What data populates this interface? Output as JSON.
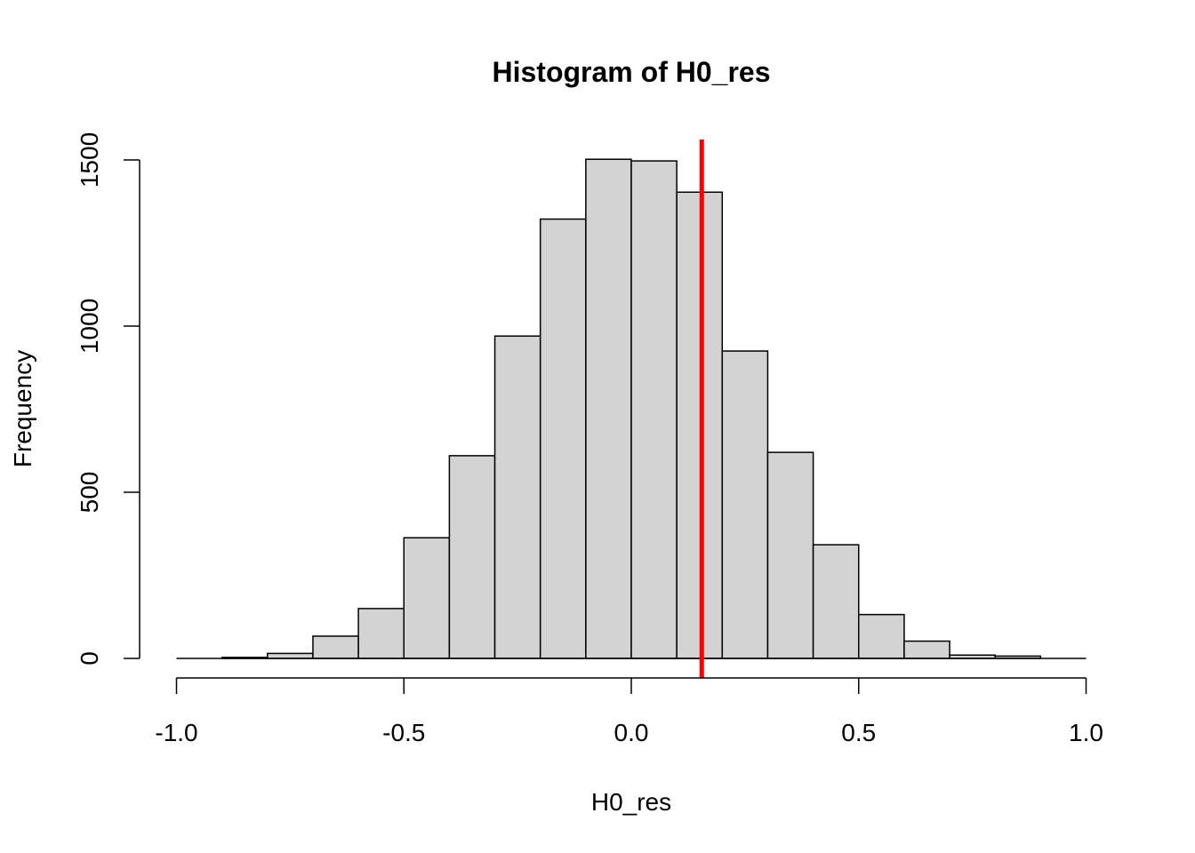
{
  "chart_data": {
    "type": "bar",
    "title": "Histogram of H0_res",
    "xlabel": "H0_res",
    "ylabel": "Frequency",
    "xlim": [
      -1.0,
      1.0
    ],
    "ylim": [
      0,
      1500
    ],
    "x_ticks": [
      -1.0,
      -0.5,
      0.0,
      0.5,
      1.0
    ],
    "x_tick_labels": [
      "-1.0",
      "-0.5",
      "0.0",
      "0.5",
      "1.0"
    ],
    "y_ticks": [
      0,
      500,
      1000,
      1500
    ],
    "y_tick_labels": [
      "0",
      "500",
      "1000",
      "1500"
    ],
    "bin_edges": [
      -1.0,
      -0.9,
      -0.8,
      -0.7,
      -0.6,
      -0.5,
      -0.4,
      -0.3,
      -0.2,
      -0.1,
      0.0,
      0.1,
      0.2,
      0.3,
      0.4,
      0.5,
      0.6,
      0.7,
      0.8,
      0.9
    ],
    "bin_width": 0.1,
    "values": [
      0,
      3,
      15,
      67,
      150,
      363,
      610,
      970,
      1322,
      1502,
      1497,
      1403,
      925,
      620,
      342,
      132,
      52,
      10,
      7
    ],
    "bar_color": "#d3d3d3",
    "vline": {
      "x": 0.155,
      "color": "#ff0000"
    },
    "grid": false,
    "legend": "none"
  }
}
